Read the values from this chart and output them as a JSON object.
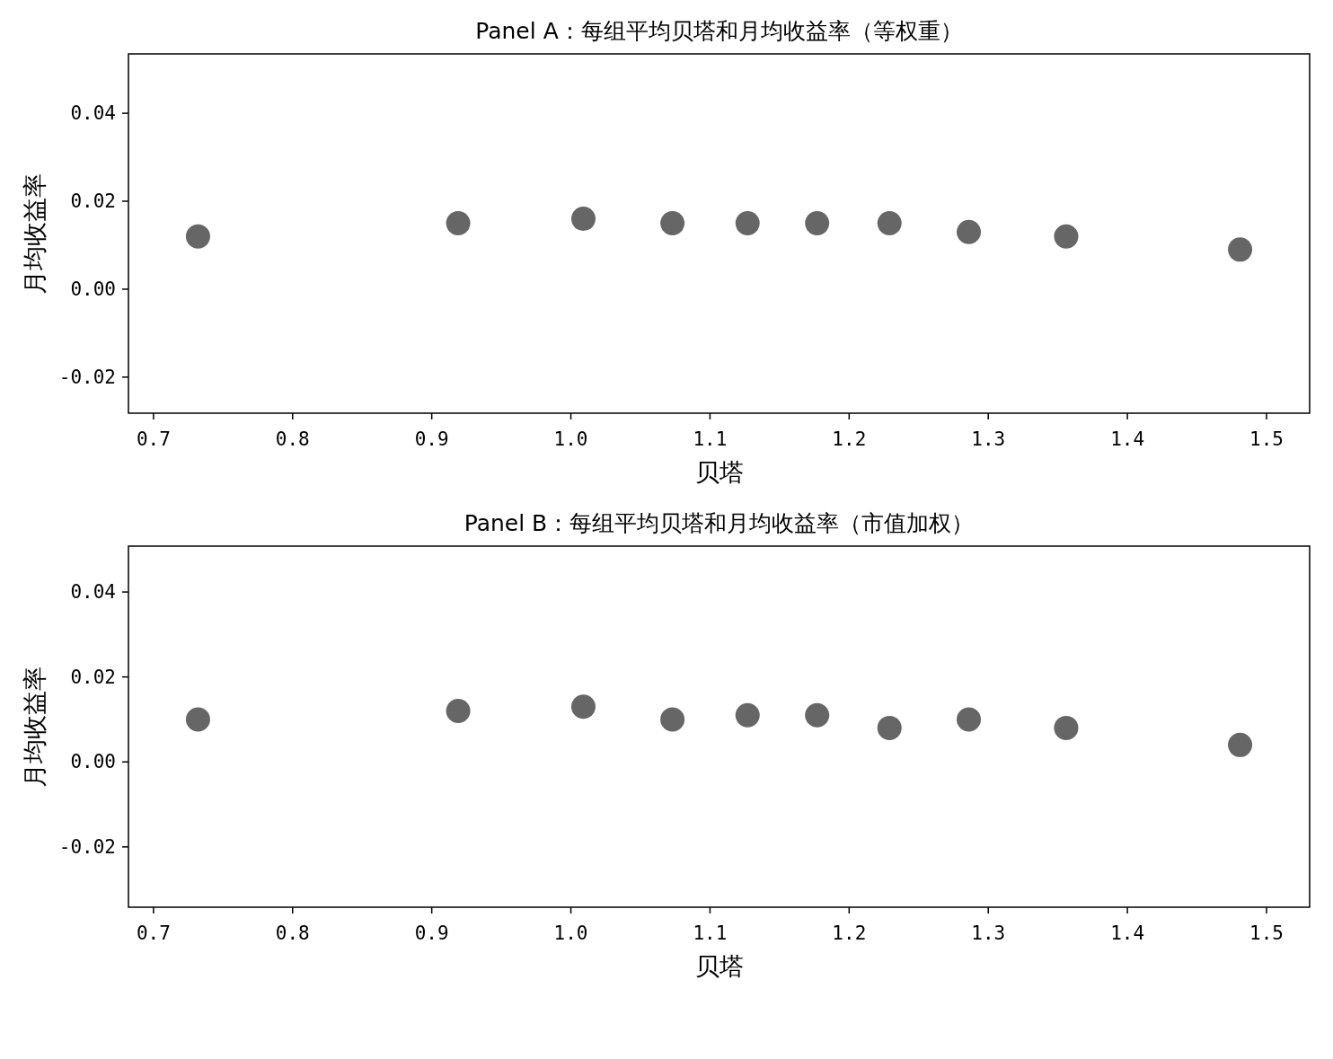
{
  "chart_data": [
    {
      "type": "scatter",
      "title": "Panel A：每组平均贝塔和月均收益率（等权重）",
      "xlabel": "贝塔",
      "ylabel": "月均收益率",
      "marker": "circle",
      "x": [
        0.732,
        0.919,
        1.009,
        1.073,
        1.127,
        1.177,
        1.229,
        1.286,
        1.356,
        1.481
      ],
      "series": [
        {
          "color": "#666666",
          "values": [
            0.012,
            0.015,
            0.016,
            0.015,
            0.015,
            0.015,
            0.015,
            0.013,
            0.012,
            0.009
          ]
        }
      ],
      "xlim": [
        0.682,
        1.531
      ],
      "xticks": [
        0.7,
        0.8,
        0.9,
        {
          "value": 1.0,
          "label": "1.0"
        },
        1.1,
        1.2,
        1.3,
        1.4,
        1.5
      ],
      "ylim": [
        -0.0282,
        0.0535
      ],
      "yticks": [
        -0.02,
        {
          "value": 0.0,
          "label": "0.00"
        },
        0.02,
        0.04
      ]
    },
    {
      "type": "scatter",
      "title": "Panel B：每组平均贝塔和月均收益率（市值加权）",
      "xlabel": "贝塔",
      "ylabel": "月均收益率",
      "marker": "circle",
      "x": [
        0.732,
        0.919,
        1.009,
        1.073,
        1.127,
        1.177,
        1.229,
        1.286,
        1.356,
        1.481
      ],
      "series": [
        {
          "color": "#666666",
          "values": [
            0.01,
            0.012,
            0.013,
            0.01,
            0.011,
            0.011,
            0.008,
            0.01,
            0.008,
            0.004
          ]
        }
      ],
      "xlim": [
        0.682,
        1.531
      ],
      "xticks": [
        0.7,
        0.8,
        0.9,
        {
          "value": 1.0,
          "label": "1.0"
        },
        1.1,
        1.2,
        1.3,
        1.4,
        1.5
      ],
      "ylim": [
        -0.0342,
        0.0508
      ],
      "yticks": [
        -0.02,
        {
          "value": 0.0,
          "label": "0.00"
        },
        0.02,
        0.04
      ]
    }
  ]
}
